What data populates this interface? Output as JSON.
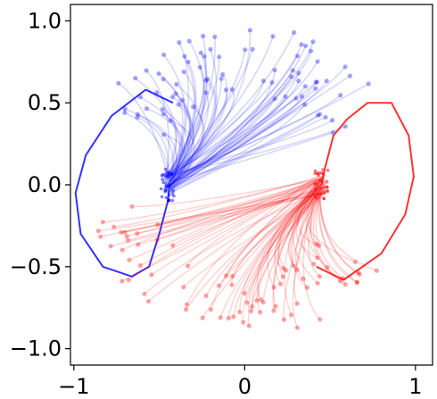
{
  "chart_data": {
    "type": "line",
    "title": "",
    "xlabel": "",
    "ylabel": "",
    "xlim": [
      -1.02,
      1.1
    ],
    "ylim": [
      -1.1,
      1.1
    ],
    "x_ticks": [
      {
        "value": -1,
        "label": "−1"
      },
      {
        "value": 0,
        "label": "0"
      },
      {
        "value": 1,
        "label": "1"
      }
    ],
    "y_ticks": [
      {
        "value": 1.0,
        "label": "1.0"
      },
      {
        "value": 0.5,
        "label": "0.5"
      },
      {
        "value": 0.0,
        "label": "0.0"
      },
      {
        "value": -0.5,
        "label": "−0.5"
      },
      {
        "value": -1.0,
        "label": "−1.0"
      }
    ],
    "grid": false,
    "legend": "none",
    "series": [
      {
        "color": "#0000ff",
        "attractor": [
          -0.45,
          0.0
        ],
        "bundle_center": [
          -0.05,
          0.15
        ],
        "start_angles_deg": [
          30,
          150
        ],
        "start_radius_range": [
          0.55,
          0.98
        ],
        "trajectory_count": 80,
        "boundary": [
          [
            -0.42,
            0.5
          ],
          [
            -0.58,
            0.58
          ],
          [
            -0.78,
            0.42
          ],
          [
            -0.93,
            0.18
          ],
          [
            -0.99,
            -0.05
          ],
          [
            -0.96,
            -0.3
          ],
          [
            -0.83,
            -0.5
          ],
          [
            -0.66,
            -0.56
          ],
          [
            -0.56,
            -0.5
          ],
          [
            -0.5,
            -0.3
          ],
          [
            -0.45,
            -0.1
          ],
          [
            -0.44,
            0.0
          ]
        ]
      },
      {
        "color": "#ff0000",
        "attractor": [
          0.45,
          0.0
        ],
        "bundle_center": [
          0.05,
          -0.15
        ],
        "start_angles_deg": [
          190,
          330
        ],
        "start_radius_range": [
          0.55,
          0.95
        ],
        "trajectory_count": 80,
        "boundary": [
          [
            0.42,
            -0.5
          ],
          [
            0.58,
            -0.58
          ],
          [
            0.8,
            -0.42
          ],
          [
            0.94,
            -0.18
          ],
          [
            0.99,
            0.05
          ],
          [
            0.96,
            0.3
          ],
          [
            0.86,
            0.5
          ],
          [
            0.72,
            0.5
          ],
          [
            0.6,
            0.4
          ],
          [
            0.52,
            0.3
          ],
          [
            0.47,
            0.1
          ],
          [
            0.45,
            0.0
          ]
        ]
      }
    ]
  }
}
